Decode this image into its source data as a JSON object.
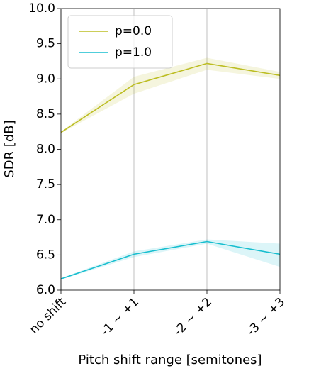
{
  "chart_data": {
    "type": "line",
    "categories": [
      "no shift",
      "-1 ~ +1",
      "-2 ~ +2",
      "-3 ~ +3"
    ],
    "series": [
      {
        "name": "p=0.0",
        "color": "#bcbd22",
        "values": [
          8.24,
          8.92,
          9.22,
          9.05
        ],
        "lower": [
          8.23,
          8.79,
          9.13,
          9.0
        ],
        "upper": [
          8.25,
          9.03,
          9.3,
          9.1
        ]
      },
      {
        "name": "p=1.0",
        "color": "#17becf",
        "values": [
          6.16,
          6.51,
          6.69,
          6.51
        ],
        "lower": [
          6.15,
          6.47,
          6.66,
          6.33
        ],
        "upper": [
          6.17,
          6.55,
          6.72,
          6.66
        ]
      }
    ],
    "x_label": "Pitch shift range [semitones]",
    "y_label": "SDR [dB]",
    "ylim": [
      6.0,
      10.0
    ],
    "yticks": [
      {
        "value": 6,
        "label": "6.0"
      },
      {
        "value": 6.5,
        "label": "6.5"
      },
      {
        "value": 7,
        "label": "7.0"
      },
      {
        "value": 7.5,
        "label": "7.5"
      },
      {
        "value": 8,
        "label": "8.0"
      },
      {
        "value": 8.5,
        "label": "8.5"
      },
      {
        "value": 9,
        "label": "9.0"
      },
      {
        "value": 9.5,
        "label": "9.5"
      },
      {
        "value": 10,
        "label": "10.0"
      }
    ],
    "grid": "x",
    "legend": "upper left"
  }
}
